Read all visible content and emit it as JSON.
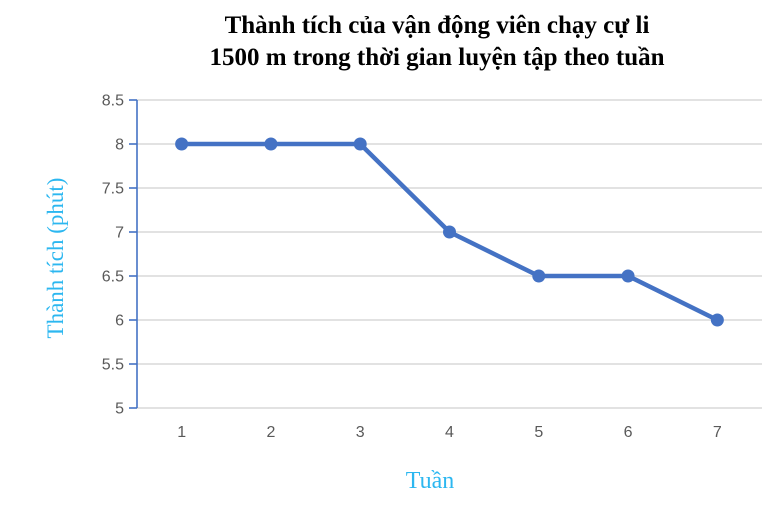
{
  "title": {
    "line1": "Thành tích của vận động viên chạy cự li",
    "line2": "1500 m trong thời gian luyện tập theo tuần"
  },
  "chart_data": {
    "type": "line",
    "title": "Thành tích của vận động viên chạy cự li 1500 m trong thời gian luyện tập theo tuần",
    "categories": [
      "1",
      "2",
      "3",
      "4",
      "5",
      "6",
      "7"
    ],
    "values": [
      8,
      8,
      8,
      7,
      6.5,
      6.5,
      6
    ],
    "xlabel": "Tuần",
    "ylabel": "Thành tích (phút)",
    "ylim": [
      5,
      8.5
    ],
    "ytick_step": 0.5,
    "yticks": [
      "5",
      "5.5",
      "6",
      "6.5",
      "7",
      "7.5",
      "8",
      "8.5"
    ],
    "grid": true,
    "legend": "none",
    "colors": {
      "line": "#4472c4",
      "marker": "#4472c4",
      "axis_line": "#4472c4",
      "gridline": "#d9d9d9",
      "tick_label": "#595959",
      "axis_title": "#2cb7f0",
      "title_text": "#000000",
      "background": "#ffffff"
    }
  }
}
